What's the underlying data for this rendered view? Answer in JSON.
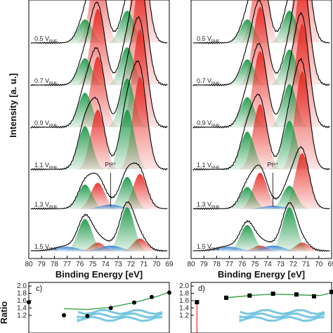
{
  "chart_data": [
    {
      "type": "line",
      "panel": "a",
      "xlabel": "Binding Energy [eV]",
      "ylabel": "Intensity [a. u.]",
      "xlim": [
        80,
        69
      ],
      "x_ticks": [
        "80",
        "79",
        "78",
        "77",
        "76",
        "75",
        "74",
        "73",
        "72",
        "71",
        "70",
        "69"
      ],
      "annotation": "Pt²⁺",
      "spectra": [
        {
          "label": "0.5 V",
          "sub": "RHE",
          "peaks": [
            {
              "pos": 74.6,
              "amp": 0.75
            },
            {
              "pos": 71.3,
              "amp": 1.0
            },
            {
              "pos": 72.3,
              "amp": 0.3
            },
            {
              "pos": 75.6,
              "amp": 0.22
            }
          ]
        },
        {
          "label": "0.7 V",
          "sub": "RHE",
          "peaks": [
            {
              "pos": 74.6,
              "amp": 0.7
            },
            {
              "pos": 71.3,
              "amp": 0.95
            },
            {
              "pos": 72.3,
              "amp": 0.35
            },
            {
              "pos": 75.6,
              "amp": 0.25
            }
          ]
        },
        {
          "label": "0.9 V",
          "sub": "RHE",
          "peaks": [
            {
              "pos": 74.6,
              "amp": 0.65
            },
            {
              "pos": 71.3,
              "amp": 0.9
            },
            {
              "pos": 72.3,
              "amp": 0.45
            },
            {
              "pos": 75.6,
              "amp": 0.32
            }
          ]
        },
        {
          "label": "1.1 V",
          "sub": "RHE",
          "peaks": [
            {
              "pos": 74.6,
              "amp": 0.55
            },
            {
              "pos": 71.3,
              "amp": 0.85
            },
            {
              "pos": 72.3,
              "amp": 0.55
            },
            {
              "pos": 75.6,
              "amp": 0.4
            }
          ]
        },
        {
          "label": "1.3 V",
          "sub": "RHE",
          "peaks": [
            {
              "pos": 74.6,
              "amp": 0.45
            },
            {
              "pos": 71.3,
              "amp": 0.6
            },
            {
              "pos": 72.3,
              "amp": 0.55
            },
            {
              "pos": 75.6,
              "amp": 0.42
            },
            {
              "pos": 73.6,
              "amp": 0.08
            }
          ]
        },
        {
          "label": "1.5 V",
          "sub": "RHE",
          "peaks": [
            {
              "pos": 74.6,
              "amp": 0.15
            },
            {
              "pos": 71.3,
              "amp": 0.22
            },
            {
              "pos": 72.3,
              "amp": 0.75
            },
            {
              "pos": 75.6,
              "amp": 0.55
            },
            {
              "pos": 73.6,
              "amp": 0.1
            },
            {
              "pos": 77.0,
              "amp": 0.08
            }
          ]
        }
      ]
    },
    {
      "type": "line",
      "panel": "b",
      "xlabel": "Binding Energy [eV]",
      "xlim": [
        80,
        69
      ],
      "x_ticks": [
        "80",
        "79",
        "78",
        "77",
        "76",
        "75",
        "74",
        "73",
        "72",
        "71",
        "70",
        "69"
      ],
      "annotation": "Pt²⁺",
      "spectra": [
        {
          "label": "0.5 V",
          "sub": "RHE",
          "peaks": [
            {
              "pos": 74.6,
              "amp": 0.75
            },
            {
              "pos": 71.3,
              "amp": 1.0
            },
            {
              "pos": 72.3,
              "amp": 0.3
            },
            {
              "pos": 75.6,
              "amp": 0.22
            }
          ]
        },
        {
          "label": "0.7 V",
          "sub": "RHE",
          "peaks": [
            {
              "pos": 74.6,
              "amp": 0.72
            },
            {
              "pos": 71.3,
              "amp": 0.98
            },
            {
              "pos": 72.3,
              "amp": 0.33
            },
            {
              "pos": 75.6,
              "amp": 0.24
            }
          ]
        },
        {
          "label": "0.9 V",
          "sub": "RHE",
          "peaks": [
            {
              "pos": 74.6,
              "amp": 0.7
            },
            {
              "pos": 71.3,
              "amp": 0.95
            },
            {
              "pos": 72.3,
              "amp": 0.4
            },
            {
              "pos": 75.6,
              "amp": 0.28
            }
          ]
        },
        {
          "label": "1.1 V",
          "sub": "RHE",
          "peaks": [
            {
              "pos": 74.6,
              "amp": 0.6
            },
            {
              "pos": 71.3,
              "amp": 0.9
            },
            {
              "pos": 72.3,
              "amp": 0.45
            },
            {
              "pos": 75.6,
              "amp": 0.35
            }
          ]
        },
        {
          "label": "1.3 V",
          "sub": "RHE",
          "peaks": [
            {
              "pos": 74.6,
              "amp": 0.62
            },
            {
              "pos": 71.3,
              "amp": 0.95
            },
            {
              "pos": 72.3,
              "amp": 0.4
            },
            {
              "pos": 75.6,
              "amp": 0.38
            },
            {
              "pos": 73.6,
              "amp": 0.06
            }
          ]
        },
        {
          "label": "1.5 V",
          "sub": "RHE",
          "peaks": [
            {
              "pos": 74.6,
              "amp": 0.1
            },
            {
              "pos": 71.3,
              "amp": 0.15
            },
            {
              "pos": 72.3,
              "amp": 0.75
            },
            {
              "pos": 75.6,
              "amp": 0.45
            },
            {
              "pos": 73.6,
              "amp": 0.1
            },
            {
              "pos": 77.0,
              "amp": 0.08
            }
          ]
        }
      ]
    },
    {
      "type": "scatter",
      "panel": "c",
      "panel_label": "c)",
      "ylabel": "Ratio",
      "y_ticks": [
        "2.0",
        "1.8",
        "1.6",
        "1.4",
        "1.2"
      ],
      "ylim": [
        1.1,
        2.1
      ],
      "xlim": [
        0.4,
        1.6
      ],
      "points": [
        {
          "x": 0.4,
          "y": 1.56
        },
        {
          "x": 0.7,
          "y": 1.2
        },
        {
          "x": 0.9,
          "y": 1.18
        },
        {
          "x": 1.1,
          "y": 1.4
        },
        {
          "x": 1.3,
          "y": 1.55
        },
        {
          "x": 1.45,
          "y": 1.7
        },
        {
          "x": 1.6,
          "y": 1.82
        }
      ],
      "fit": [
        {
          "x": 0.7,
          "y": 1.38
        },
        {
          "x": 0.9,
          "y": 1.36
        },
        {
          "x": 1.1,
          "y": 1.42
        },
        {
          "x": 1.3,
          "y": 1.55
        },
        {
          "x": 1.5,
          "y": 1.72
        },
        {
          "x": 1.6,
          "y": 1.84
        }
      ]
    },
    {
      "type": "scatter",
      "panel": "d",
      "panel_label": "d)",
      "y_ticks": [
        "2.0",
        "1.8",
        "1.6",
        "1.4",
        "1.2"
      ],
      "ylim": [
        1.1,
        2.1
      ],
      "xlim": [
        0.4,
        1.6
      ],
      "points": [
        {
          "x": 0.45,
          "y": 1.56
        },
        {
          "x": 0.7,
          "y": 1.68
        },
        {
          "x": 0.9,
          "y": 1.74
        },
        {
          "x": 1.1,
          "y": 1.79
        },
        {
          "x": 1.3,
          "y": 1.77
        },
        {
          "x": 1.45,
          "y": 1.72
        },
        {
          "x": 1.6,
          "y": 1.84
        }
      ],
      "fit": [
        {
          "x": 0.7,
          "y": 1.68
        },
        {
          "x": 0.9,
          "y": 1.74
        },
        {
          "x": 1.1,
          "y": 1.78
        },
        {
          "x": 1.3,
          "y": 1.76
        },
        {
          "x": 1.5,
          "y": 1.74
        },
        {
          "x": 1.6,
          "y": 1.82
        }
      ]
    }
  ],
  "colors": {
    "red": "#e8302a",
    "green": "#1f9a4a",
    "blue": "#2c7fd6",
    "fit_line": "#2b9a3c",
    "data_line": "#000000"
  }
}
